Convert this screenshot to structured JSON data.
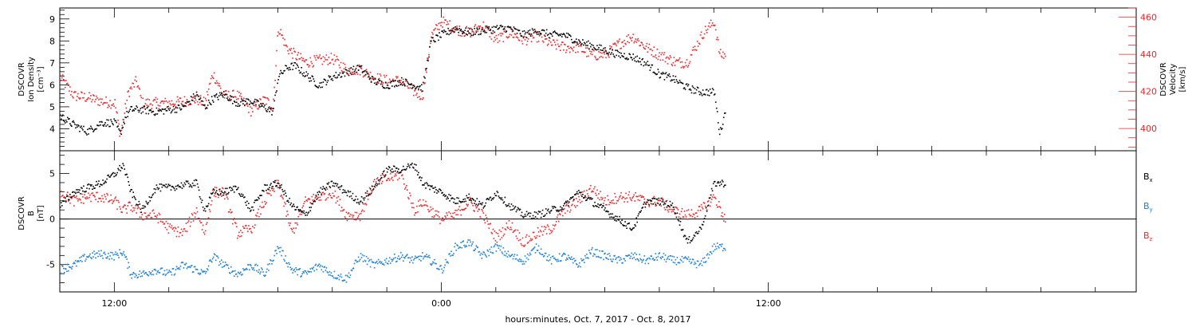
{
  "xlabel": "hours:minutes, Oct.  7, 2017 - Oct.  8, 2017",
  "x_axis": {
    "unit": "hours since 2017-10-07 00:00",
    "range": [
      10.0,
      49.5
    ],
    "major_ticks": [
      {
        "t": 12,
        "label": "12:00"
      },
      {
        "t": 24,
        "label": "0:00"
      },
      {
        "t": 36,
        "label": "12:00"
      }
    ]
  },
  "colors": {
    "black": "#000000",
    "red": "#e8282a",
    "blue": "#1f7fd0"
  },
  "chart_data": [
    {
      "type": "scatter",
      "panel": "density-velocity",
      "title": "",
      "ylabel_left": [
        "DSCOVR",
        "Ion Density",
        "[cm⁻³]"
      ],
      "ylabel_right": [
        "DSCOVR",
        "Velocity",
        "[km/s]"
      ],
      "ylim_left": [
        3.0,
        9.5
      ],
      "ylim_right": [
        388,
        465
      ],
      "yticks_left": [
        4,
        5,
        6,
        7,
        8,
        9
      ],
      "yticks_right": [
        400,
        420,
        440,
        460
      ],
      "series": [
        {
          "axis": "left",
          "color": "black",
          "x": [
            10.0,
            10.5,
            11.0,
            11.5,
            12.0,
            12.2,
            12.4,
            12.6,
            13.0,
            13.5,
            14.0,
            14.5,
            15.0,
            15.3,
            15.6,
            16.0,
            16.5,
            17.0,
            17.5,
            17.8,
            18.0,
            18.3,
            18.6,
            19.0,
            19.5,
            20.0,
            20.5,
            21.0,
            21.5,
            22.0,
            22.5,
            23.0,
            23.3,
            23.6,
            24.0,
            24.5,
            25.0,
            25.5,
            26.0,
            26.5,
            27.0,
            27.5,
            28.0,
            28.5,
            29.0,
            29.5,
            30.0,
            30.5,
            31.0,
            31.5,
            32.0,
            32.5,
            33.0,
            33.5,
            34.0,
            34.2,
            34.4
          ],
          "y": [
            4.6,
            4.2,
            3.9,
            4.3,
            4.3,
            3.8,
            4.6,
            4.9,
            4.9,
            4.8,
            4.9,
            5.0,
            5.6,
            5.0,
            5.4,
            5.6,
            5.2,
            5.3,
            5.0,
            4.8,
            6.4,
            6.8,
            6.9,
            6.5,
            6.0,
            6.4,
            6.6,
            6.8,
            6.2,
            6.0,
            6.2,
            6.0,
            5.9,
            8.0,
            8.3,
            8.6,
            8.4,
            8.5,
            8.6,
            8.6,
            8.3,
            8.5,
            8.3,
            8.3,
            8.0,
            7.8,
            7.6,
            7.4,
            7.3,
            7.0,
            6.5,
            6.3,
            5.9,
            5.7,
            5.7,
            3.8,
            4.8
          ]
        },
        {
          "axis": "right",
          "color": "red",
          "x": [
            10.0,
            10.5,
            11.0,
            11.5,
            12.0,
            12.2,
            12.5,
            12.8,
            13.0,
            13.5,
            14.0,
            14.5,
            15.0,
            15.3,
            15.6,
            16.0,
            16.5,
            17.0,
            17.5,
            17.8,
            18.0,
            18.3,
            18.6,
            19.0,
            19.5,
            20.0,
            20.5,
            21.0,
            21.5,
            22.0,
            22.5,
            23.0,
            23.3,
            23.6,
            24.0,
            24.5,
            25.0,
            25.5,
            26.0,
            26.5,
            27.0,
            27.5,
            28.0,
            28.5,
            29.0,
            29.5,
            30.0,
            30.5,
            31.0,
            31.5,
            32.0,
            32.3,
            32.6,
            33.0,
            33.3,
            33.6,
            34.0,
            34.2,
            34.4
          ],
          "y": [
            428,
            418,
            417,
            415,
            414,
            397,
            420,
            426,
            414,
            414,
            414,
            415,
            416,
            414,
            430,
            418,
            418,
            410,
            416,
            412,
            455,
            444,
            440,
            436,
            437,
            438,
            432,
            432,
            428,
            426,
            426,
            420,
            418,
            450,
            458,
            454,
            452,
            456,
            448,
            452,
            448,
            450,
            446,
            444,
            444,
            440,
            440,
            446,
            450,
            444,
            440,
            438,
            436,
            436,
            444,
            452,
            458,
            440,
            440
          ]
        }
      ]
    },
    {
      "type": "scatter",
      "panel": "magnetic-field",
      "title": "",
      "ylabel_left": [
        "DSCOVR",
        "B",
        "[nT]"
      ],
      "ylim": [
        -8.0,
        7.5
      ],
      "yticks": [
        -5,
        0,
        5
      ],
      "zero_line": true,
      "legend_position": "right",
      "series": [
        {
          "name_main": "B",
          "name_sub": "x",
          "color": "black",
          "x": [
            10.0,
            10.5,
            11.0,
            11.5,
            12.0,
            12.3,
            12.6,
            13.0,
            13.5,
            14.0,
            14.5,
            15.0,
            15.3,
            15.6,
            16.0,
            16.5,
            17.0,
            17.5,
            18.0,
            18.5,
            19.0,
            19.5,
            20.0,
            20.5,
            21.0,
            21.5,
            22.0,
            22.5,
            23.0,
            23.3,
            23.6,
            24.0,
            24.5,
            25.0,
            25.5,
            26.0,
            26.5,
            27.0,
            27.5,
            28.0,
            28.5,
            29.0,
            29.5,
            30.0,
            30.5,
            31.0,
            31.5,
            32.0,
            32.5,
            33.0,
            33.5,
            34.0,
            34.4
          ],
          "y": [
            1.5,
            3.0,
            3.5,
            4.0,
            5.0,
            6.0,
            3.0,
            1.0,
            3.5,
            3.5,
            3.8,
            4.0,
            1.0,
            3.0,
            3.0,
            3.5,
            1.0,
            3.5,
            4.0,
            1.5,
            0.5,
            3.0,
            4.0,
            3.0,
            2.0,
            3.5,
            5.5,
            5.5,
            6.0,
            4.0,
            3.5,
            3.0,
            2.0,
            2.5,
            1.5,
            3.0,
            1.5,
            0.5,
            0.5,
            1.0,
            1.5,
            3.0,
            2.0,
            1.0,
            0.0,
            -1.0,
            2.0,
            2.0,
            1.5,
            -2.5,
            -1.0,
            4.0,
            4.0
          ]
        },
        {
          "name_main": "B",
          "name_sub": "y",
          "color": "blue",
          "x": [
            10.0,
            10.5,
            11.0,
            11.5,
            12.0,
            12.3,
            12.6,
            13.0,
            13.5,
            14.0,
            14.5,
            15.0,
            15.3,
            15.6,
            16.0,
            16.5,
            17.0,
            17.5,
            18.0,
            18.5,
            19.0,
            19.5,
            20.0,
            20.5,
            21.0,
            21.5,
            22.0,
            22.5,
            23.0,
            23.3,
            23.6,
            24.0,
            24.5,
            25.0,
            25.5,
            26.0,
            26.5,
            27.0,
            27.5,
            28.0,
            28.5,
            29.0,
            29.5,
            30.0,
            30.5,
            31.0,
            31.5,
            32.0,
            32.5,
            33.0,
            33.5,
            34.0,
            34.4
          ],
          "y": [
            -5.5,
            -5.0,
            -4.0,
            -3.8,
            -4.0,
            -3.5,
            -6.0,
            -6.0,
            -5.5,
            -6.0,
            -5.0,
            -5.5,
            -6.0,
            -4.0,
            -5.0,
            -6.0,
            -5.0,
            -6.0,
            -3.0,
            -5.5,
            -6.0,
            -5.0,
            -6.0,
            -6.5,
            -4.0,
            -5.0,
            -4.5,
            -4.0,
            -4.5,
            -4.0,
            -4.5,
            -5.5,
            -3.0,
            -2.5,
            -4.0,
            -3.0,
            -4.0,
            -4.5,
            -3.0,
            -4.5,
            -4.0,
            -5.0,
            -3.5,
            -4.0,
            -4.5,
            -4.0,
            -4.5,
            -4.0,
            -4.5,
            -4.5,
            -5.0,
            -3.0,
            -3.0
          ]
        },
        {
          "name_main": "B",
          "name_sub": "z",
          "color": "red",
          "x": [
            10.0,
            10.5,
            11.0,
            11.5,
            12.0,
            12.3,
            12.6,
            13.0,
            13.5,
            14.0,
            14.5,
            15.0,
            15.3,
            15.6,
            16.0,
            16.5,
            17.0,
            17.5,
            18.0,
            18.5,
            19.0,
            19.5,
            20.0,
            20.5,
            21.0,
            21.5,
            22.0,
            22.5,
            23.0,
            23.3,
            23.6,
            24.0,
            24.5,
            25.0,
            25.5,
            26.0,
            26.5,
            27.0,
            27.5,
            28.0,
            28.5,
            29.0,
            29.5,
            30.0,
            30.5,
            31.0,
            31.5,
            32.0,
            32.5,
            33.0,
            33.5,
            34.0,
            34.4
          ],
          "y": [
            3.0,
            2.0,
            2.5,
            2.5,
            2.0,
            1.0,
            1.5,
            0.5,
            0.5,
            -1.0,
            -1.5,
            1.0,
            -1.5,
            3.0,
            3.0,
            -1.5,
            -1.0,
            2.0,
            4.0,
            -1.5,
            2.0,
            2.5,
            3.0,
            0.5,
            0.5,
            4.0,
            4.5,
            5.0,
            1.0,
            2.0,
            1.0,
            0.0,
            0.5,
            2.0,
            0.5,
            -2.0,
            -0.5,
            -2.5,
            -1.5,
            -1.0,
            1.0,
            2.0,
            3.5,
            2.0,
            2.5,
            2.5,
            2.0,
            2.0,
            1.0,
            0.5,
            1.0,
            2.5,
            0.0
          ]
        }
      ]
    }
  ]
}
